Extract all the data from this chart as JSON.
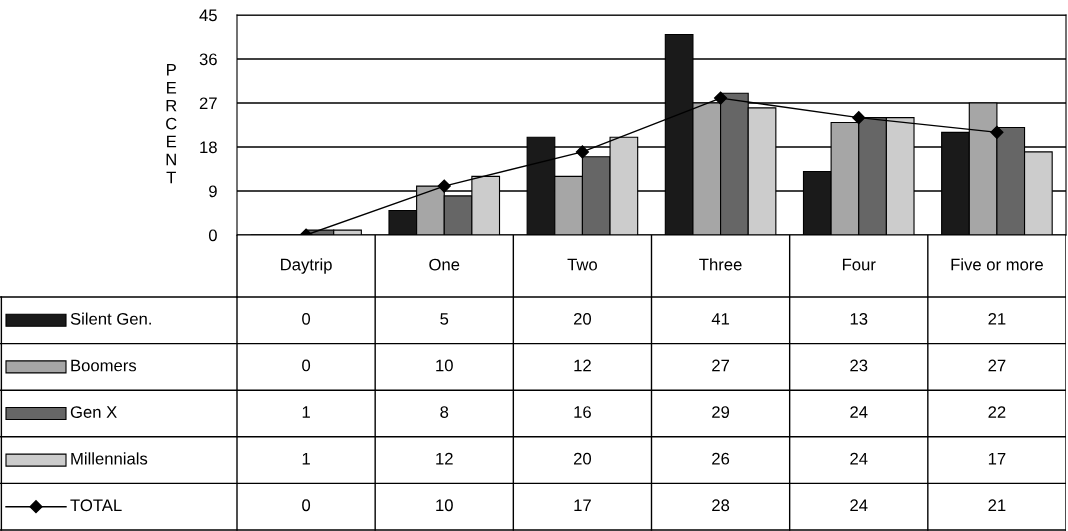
{
  "chart_data": {
    "type": "bar",
    "ylabel": "PERCENT",
    "categories": [
      "Daytrip",
      "One",
      "Two",
      "Three",
      "Four",
      "Five or more"
    ],
    "series": [
      {
        "name": "Silent Gen.",
        "color": "#1a1a1a",
        "values": [
          0,
          5,
          20,
          41,
          13,
          21
        ]
      },
      {
        "name": "Boomers",
        "color": "#a6a6a6",
        "values": [
          0,
          10,
          12,
          27,
          23,
          27
        ]
      },
      {
        "name": "Gen X",
        "color": "#666666",
        "values": [
          1,
          8,
          16,
          29,
          24,
          22
        ]
      },
      {
        "name": "Millennials",
        "color": "#cccccc",
        "values": [
          1,
          12,
          20,
          26,
          24,
          17
        ]
      },
      {
        "name": "TOTAL",
        "type": "line",
        "color": "#000000",
        "marker": "diamond",
        "values": [
          0,
          10,
          17,
          28,
          24,
          21
        ]
      }
    ],
    "ylim": [
      0,
      45
    ],
    "yticks": [
      0,
      9,
      18,
      27,
      36,
      45
    ],
    "grid": "y",
    "legend": "bottom left",
    "data_labels": true
  }
}
